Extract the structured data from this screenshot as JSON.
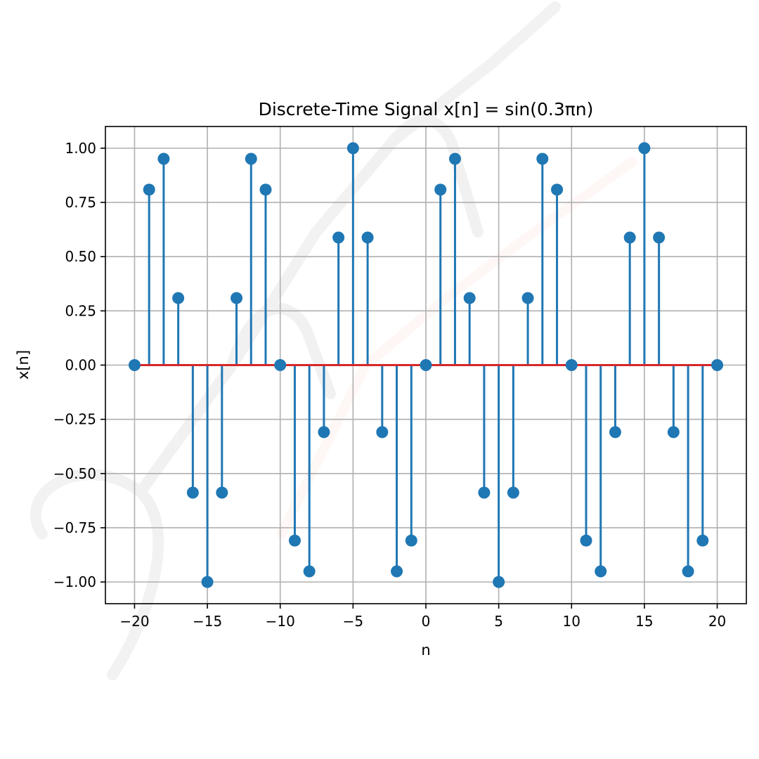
{
  "chart_data": {
    "type": "stem",
    "title": "Discrete-Time Signal x[n] = sin(0.3πn)",
    "xlabel": "n",
    "ylabel": "x[n]",
    "xlim": [
      -22,
      22
    ],
    "ylim": [
      -1.1,
      1.1
    ],
    "grid": true,
    "legend": null,
    "x_ticks": [
      -20,
      -15,
      -10,
      -5,
      0,
      5,
      10,
      15,
      20
    ],
    "x_tick_labels": [
      "−20",
      "−15",
      "−10",
      "−5",
      "0",
      "5",
      "10",
      "15",
      "20"
    ],
    "y_ticks": [
      1.0,
      0.75,
      0.5,
      0.25,
      0.0,
      -0.25,
      -0.5,
      -0.75,
      -1.0
    ],
    "y_tick_labels": [
      "1.00",
      "0.75",
      "0.50",
      "0.25",
      "0.00",
      "−0.25",
      "−0.50",
      "−0.75",
      "−1.00"
    ],
    "x": [
      -20,
      -19,
      -18,
      -17,
      -16,
      -15,
      -14,
      -13,
      -12,
      -11,
      -10,
      -9,
      -8,
      -7,
      -6,
      -5,
      -4,
      -3,
      -2,
      -1,
      0,
      1,
      2,
      3,
      4,
      5,
      6,
      7,
      8,
      9,
      10,
      11,
      12,
      13,
      14,
      15,
      16,
      17,
      18,
      19,
      20
    ],
    "values": [
      0.0,
      0.809,
      0.951,
      0.309,
      -0.588,
      -1.0,
      -0.588,
      0.309,
      0.951,
      0.809,
      0.0,
      -0.809,
      -0.951,
      -0.309,
      0.588,
      1.0,
      0.588,
      -0.309,
      -0.951,
      -0.809,
      0.0,
      0.809,
      0.951,
      0.309,
      -0.588,
      -1.0,
      -0.588,
      0.309,
      0.951,
      0.809,
      0.0,
      -0.809,
      -0.951,
      -0.309,
      0.588,
      1.0,
      0.588,
      -0.309,
      -0.951,
      -0.809,
      0.0
    ],
    "baseline": 0.0
  },
  "colors": {
    "stem": "#1f77b4",
    "marker": "#1f77b4",
    "baseline": "#d62728",
    "grid": "#b0b0b0",
    "axes": "#000000"
  }
}
